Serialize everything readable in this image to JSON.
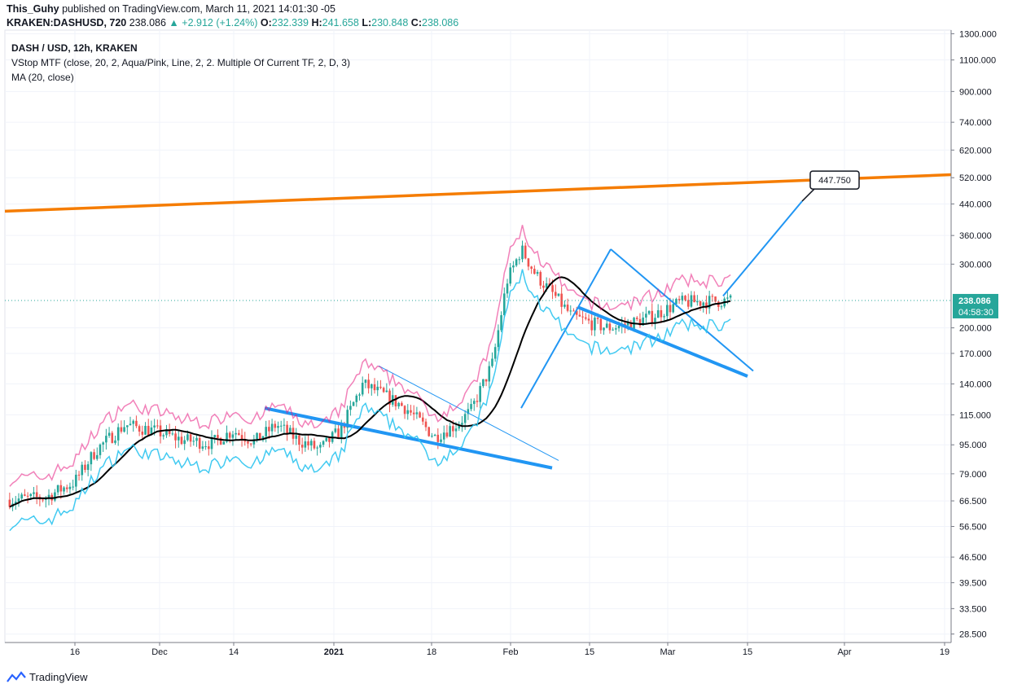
{
  "header": {
    "author": "This_Guhy",
    "published": "published on TradingView.com, March 11, 2021 14:01:30 -05",
    "symbol": "KRAKEN:DASHUSD, 720",
    "last": "238.086",
    "change": "+2.912 (+1.24%)",
    "open_label": "O:",
    "open": "232.339",
    "high_label": "H:",
    "high": "241.658",
    "low_label": "L:",
    "low": "230.848",
    "close_label": "C:",
    "close": "238.086"
  },
  "legend": {
    "title": "DASH / USD, 12h, KRAKEN",
    "indicator1": "VStop MTF (close, 20, 2, Aqua/Pink, Line, 2, 2. Multiple Of Current TF, 2, D, 3)",
    "indicator2": "MA (20, close)"
  },
  "price_axis": {
    "labels": [
      "1300.000",
      "1100.000",
      "900.000",
      "740.000",
      "620.000",
      "520.000",
      "440.000",
      "360.000",
      "300.000",
      "200.000",
      "170.000",
      "140.000",
      "115.000",
      "95.000",
      "79.000",
      "66.500",
      "56.500",
      "46.500",
      "39.500",
      "33.500",
      "28.500"
    ],
    "current_price": "238.086",
    "countdown": "04:58:30"
  },
  "time_axis": {
    "labels": [
      "16",
      "Dec",
      "14",
      "2021",
      "18",
      "Feb",
      "15",
      "Mar",
      "15",
      "Apr",
      "19"
    ]
  },
  "annotation": {
    "target_label": "447.750"
  },
  "footer": {
    "brand": "TradingView"
  },
  "colors": {
    "up": "#26a69a",
    "down": "#ef5350",
    "ma": "#000000",
    "vstop_up": "#2ec4f0",
    "vstop_down": "#e8197f",
    "trend": "#2196f3",
    "resistance": "#f57c00"
  },
  "chart_data": {
    "type": "candlestick",
    "scale": "log",
    "ylim": [
      27,
      1330
    ],
    "symbol": "DASH / USD",
    "interval": "12h",
    "x_ticks": [
      "16",
      "Dec",
      "14",
      "2021",
      "18",
      "Feb",
      "15",
      "Mar",
      "15",
      "Apr",
      "19"
    ],
    "y_ticks": [
      1300,
      1100,
      900,
      740,
      620,
      520,
      440,
      360,
      300,
      200,
      170,
      140,
      115,
      95,
      79,
      66.5,
      56.5,
      46.5,
      39.5,
      33.5,
      28.5
    ],
    "price_keypoints_t": [
      0,
      0.05,
      0.09,
      0.12,
      0.16,
      0.2,
      0.24,
      0.28,
      0.31,
      0.34,
      0.37,
      0.4,
      0.43,
      0.46,
      0.49,
      0.52,
      0.55,
      0.59,
      0.6,
      0.62,
      0.64,
      0.67,
      0.69,
      0.71,
      0.73,
      0.76,
      0.78,
      0.81,
      0.83,
      0.86,
      0.89,
      0.93,
      1
    ],
    "price_keypoints": [
      67,
      68,
      75,
      92,
      108,
      104,
      98,
      96,
      104,
      97,
      108,
      98,
      92,
      105,
      140,
      130,
      120,
      100,
      103,
      108,
      118,
      160,
      270,
      330,
      280,
      240,
      215,
      205,
      200,
      205,
      215,
      235,
      238
    ],
    "ma_line": "MA (20, close)",
    "vstop": "VStop MTF",
    "target": 447.75,
    "last_close": 238.086
  }
}
